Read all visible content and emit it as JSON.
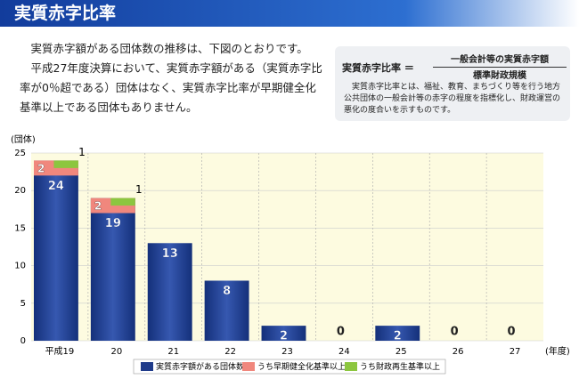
{
  "header": {
    "title": "実質赤字比率"
  },
  "intro": [
    "実質赤字額がある団体数の推移は、下図のとおりです。",
    "平成27年度決算において、実質赤字額がある（実質赤字比率が0％超である）団体はなく、実質赤字比率が早期健全化基準以上である団体もありません。"
  ],
  "formula": {
    "lhs": "実質赤字比率 ＝",
    "numerator": "一般会計等の実質赤字額",
    "denominator": "標準財政規模",
    "description": "実質赤字比率とは、福祉、教育、まちづくり等を行う地方公共団体の一般会計等の赤字の程度を指標化し、財政運営の悪化の度合いを示すものです。"
  },
  "chart_data": {
    "type": "bar",
    "y_unit": "(団体)",
    "x_unit": "(年度)",
    "categories": [
      "平成19",
      "20",
      "21",
      "22",
      "23",
      "24",
      "25",
      "26",
      "27"
    ],
    "series": [
      {
        "name": "実質赤字額がある団体数",
        "color": "#1f3b8a",
        "values": [
          24,
          19,
          13,
          8,
          2,
          0,
          2,
          0,
          0
        ]
      },
      {
        "name": "うち早期健全化基準以上",
        "color": "#f0877d",
        "values": [
          2,
          2,
          0,
          0,
          0,
          0,
          0,
          0,
          0
        ]
      },
      {
        "name": "うち財政再生基準以上",
        "color": "#8cc63f",
        "values": [
          1,
          1,
          0,
          0,
          0,
          0,
          0,
          0,
          0
        ]
      }
    ],
    "ylim": [
      0,
      25
    ],
    "yticks": [
      0,
      5,
      10,
      15,
      20,
      25
    ],
    "grid": true
  }
}
